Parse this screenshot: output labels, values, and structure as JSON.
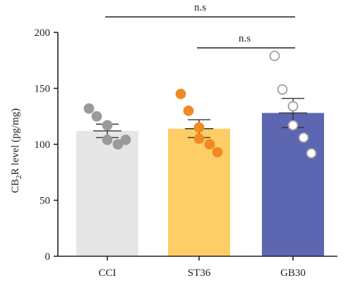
{
  "chart_data": {
    "type": "bar",
    "ylabel_parts": [
      "CB",
      "2",
      "R level (pg/mg)"
    ],
    "ylim": [
      0,
      200
    ],
    "yticks": [
      0,
      50,
      100,
      150,
      200
    ],
    "categories": [
      "CCI",
      "ST36",
      "GB30"
    ],
    "values": [
      112,
      114,
      128
    ],
    "sem": [
      6,
      8,
      13
    ],
    "bar_colors": [
      "#e6e6e6",
      "#fdcd66",
      "#5d66b0"
    ],
    "point_style": [
      {
        "fill": "#9a9a9a",
        "stroke": "#9a9a9a"
      },
      {
        "fill": "#f08a24",
        "stroke": "#f08a24"
      },
      {
        "fill": "#ffffff",
        "stroke": "#a0a0a0"
      }
    ],
    "points": [
      [
        132,
        125,
        117,
        104,
        100,
        104
      ],
      [
        145,
        130,
        115,
        105,
        100,
        93
      ],
      [
        179,
        149,
        134,
        117,
        106,
        92
      ]
    ],
    "significance": [
      {
        "from": 0,
        "to": 2,
        "label": "n.s"
      },
      {
        "from": 1,
        "to": 2,
        "label": "n.s"
      }
    ]
  }
}
